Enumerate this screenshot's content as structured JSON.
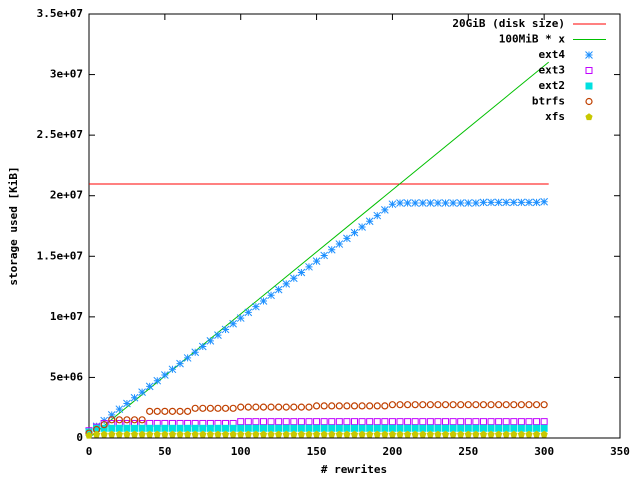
{
  "chart_data": {
    "type": "line-points",
    "xlabel": "# rewrites",
    "ylabel": "storage used [KiB]",
    "xlim": [
      0,
      350
    ],
    "xticks": [
      0,
      50,
      100,
      150,
      200,
      250,
      300,
      350
    ],
    "ylim": [
      0,
      35000000
    ],
    "yticks": [
      0,
      {
        "value": 5000000,
        "label": "5e+06"
      },
      {
        "value": 10000000,
        "label": "1e+07"
      },
      {
        "value": 15000000,
        "label": "1.5e+07"
      },
      {
        "value": 20000000,
        "label": "2e+07"
      },
      {
        "value": 25000000,
        "label": "2.5e+07"
      },
      {
        "value": 30000000,
        "label": "3e+07"
      },
      {
        "value": 35000000,
        "label": "3.5e+07"
      }
    ],
    "legend": "top-right",
    "x": [
      0,
      5,
      10,
      15,
      20,
      25,
      30,
      35,
      40,
      45,
      50,
      55,
      60,
      65,
      70,
      75,
      80,
      85,
      90,
      95,
      100,
      105,
      110,
      115,
      120,
      125,
      130,
      135,
      140,
      145,
      150,
      155,
      160,
      165,
      170,
      175,
      180,
      185,
      190,
      195,
      200,
      205,
      210,
      215,
      220,
      225,
      230,
      235,
      240,
      245,
      250,
      255,
      260,
      265,
      270,
      275,
      280,
      285,
      290,
      295,
      300
    ],
    "series": [
      {
        "name": "20GiB (disk size)",
        "color": "#ff0000",
        "marker": "line",
        "x": [
          0,
          303
        ],
        "values": [
          20971520,
          20971520
        ]
      },
      {
        "name": "100MiB * x",
        "color": "#00c000",
        "marker": "line",
        "x": [
          0,
          303
        ],
        "values": [
          0,
          31027200
        ]
      },
      {
        "name": "ext4",
        "color": "#1e90ff",
        "marker": "asterisk",
        "values": [
          500000,
          970000,
          1440000,
          1910000,
          2380000,
          2850000,
          3320000,
          3790000,
          4260000,
          4730000,
          5200000,
          5670000,
          6140000,
          6610000,
          7080000,
          7550000,
          8020000,
          8490000,
          8960000,
          9430000,
          9900000,
          10370000,
          10840000,
          11310000,
          11780000,
          12250000,
          12720000,
          13190000,
          13660000,
          14130000,
          14600000,
          15070000,
          15540000,
          16010000,
          16480000,
          16950000,
          17420000,
          17890000,
          18360000,
          18830000,
          19300000,
          19400000,
          19400000,
          19400000,
          19400000,
          19400000,
          19400000,
          19400000,
          19400000,
          19400000,
          19400000,
          19400000,
          19450000,
          19450000,
          19450000,
          19450000,
          19450000,
          19450000,
          19450000,
          19450000,
          19500000
        ]
      },
      {
        "name": "ext3",
        "color": "#c000ff",
        "marker": "square-open",
        "values": [
          600000,
          900000,
          1200000,
          1200000,
          1200000,
          1200000,
          1200000,
          1200000,
          1200000,
          1200000,
          1200000,
          1200000,
          1200000,
          1200000,
          1200000,
          1200000,
          1200000,
          1200000,
          1200000,
          1200000,
          1350000,
          1350000,
          1350000,
          1350000,
          1350000,
          1350000,
          1350000,
          1350000,
          1350000,
          1350000,
          1350000,
          1350000,
          1350000,
          1350000,
          1350000,
          1350000,
          1350000,
          1350000,
          1350000,
          1350000,
          1350000,
          1350000,
          1350000,
          1350000,
          1350000,
          1350000,
          1350000,
          1350000,
          1350000,
          1350000,
          1350000,
          1350000,
          1350000,
          1350000,
          1350000,
          1350000,
          1350000,
          1350000,
          1350000,
          1350000,
          1350000
        ]
      },
      {
        "name": "ext2",
        "color": "#00e0e0",
        "marker": "square",
        "values": [
          500000,
          800000,
          800000,
          800000,
          800000,
          800000,
          800000,
          800000,
          800000,
          800000,
          800000,
          800000,
          800000,
          800000,
          800000,
          800000,
          800000,
          800000,
          800000,
          800000,
          800000,
          800000,
          800000,
          800000,
          800000,
          800000,
          800000,
          800000,
          800000,
          800000,
          800000,
          800000,
          800000,
          800000,
          800000,
          800000,
          800000,
          800000,
          800000,
          800000,
          800000,
          800000,
          800000,
          800000,
          800000,
          800000,
          800000,
          800000,
          800000,
          800000,
          800000,
          800000,
          800000,
          800000,
          800000,
          800000,
          800000,
          800000,
          800000,
          800000,
          800000
        ]
      },
      {
        "name": "btrfs",
        "color": "#c04000",
        "marker": "circle-open",
        "values": [
          400000,
          700000,
          1100000,
          1500000,
          1500000,
          1500000,
          1500000,
          1500000,
          2200000,
          2200000,
          2200000,
          2200000,
          2200000,
          2200000,
          2450000,
          2450000,
          2450000,
          2450000,
          2450000,
          2450000,
          2550000,
          2550000,
          2550000,
          2550000,
          2550000,
          2550000,
          2550000,
          2550000,
          2550000,
          2550000,
          2650000,
          2650000,
          2650000,
          2650000,
          2650000,
          2650000,
          2650000,
          2650000,
          2650000,
          2650000,
          2750000,
          2750000,
          2750000,
          2750000,
          2750000,
          2750000,
          2750000,
          2750000,
          2750000,
          2750000,
          2750000,
          2750000,
          2750000,
          2750000,
          2750000,
          2750000,
          2750000,
          2750000,
          2750000,
          2750000,
          2750000
        ]
      },
      {
        "name": "xfs",
        "color": "#c8c800",
        "marker": "pentagon",
        "values": [
          200000,
          300000,
          300000,
          300000,
          300000,
          300000,
          300000,
          300000,
          300000,
          300000,
          300000,
          300000,
          300000,
          300000,
          300000,
          300000,
          300000,
          300000,
          300000,
          300000,
          300000,
          300000,
          300000,
          300000,
          300000,
          300000,
          300000,
          300000,
          300000,
          300000,
          300000,
          300000,
          300000,
          300000,
          300000,
          300000,
          300000,
          300000,
          300000,
          300000,
          300000,
          300000,
          300000,
          300000,
          300000,
          300000,
          300000,
          300000,
          300000,
          300000,
          300000,
          300000,
          300000,
          300000,
          300000,
          300000,
          300000,
          300000,
          300000,
          300000,
          300000
        ]
      }
    ]
  }
}
